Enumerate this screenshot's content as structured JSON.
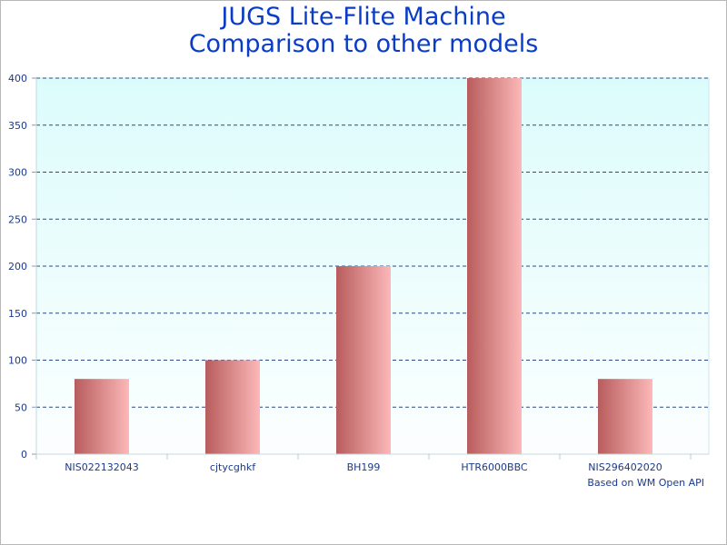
{
  "chart_data": {
    "type": "bar",
    "title": [
      "JUGS Lite-Flite Machine",
      "Comparison to other models"
    ],
    "categories": [
      "NIS022132043",
      "cjtycghkf",
      "BH199",
      "HTR6000BBC",
      "NIS296402020"
    ],
    "values": [
      80,
      100,
      200,
      400,
      80
    ],
    "ylim": [
      0,
      400
    ],
    "yticks": [
      0,
      50,
      100,
      150,
      200,
      250,
      300,
      350,
      400
    ],
    "xlabel": "",
    "ylabel": "",
    "grid": true,
    "credit": "Based on WM Open API"
  },
  "colors": {
    "bar_dark": "#b85c5c",
    "bar_light": "#fcb8b8",
    "plot_bg_top": "#dcfcfc",
    "plot_bg_bottom": "#fcfefe",
    "grid": "#2a4a8a",
    "title": "#0a3cc8",
    "axis_text": "#1a3a8a"
  }
}
